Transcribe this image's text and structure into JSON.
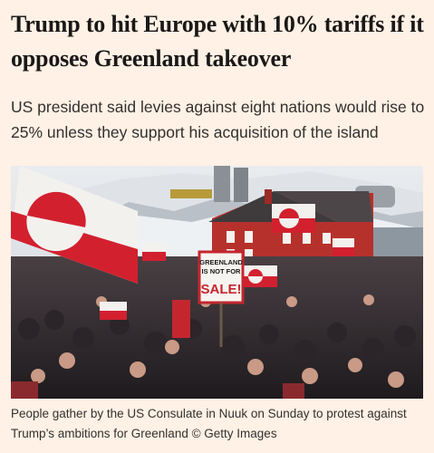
{
  "article": {
    "headline": "Trump to hit Europe with 10% tariffs if it opposes Greenland takeover",
    "standfirst": "US president said levies against eight nations would rise to 25% unless they support his acquisition of the island",
    "image": {
      "sign_lines": [
        "GREENLAND",
        "IS NOT FOR",
        "SALE!"
      ]
    },
    "caption": "People gather by the US Consulate in Nuuk on Sunday to protest against Trump’s ambitions for Greenland © Getty Images"
  }
}
